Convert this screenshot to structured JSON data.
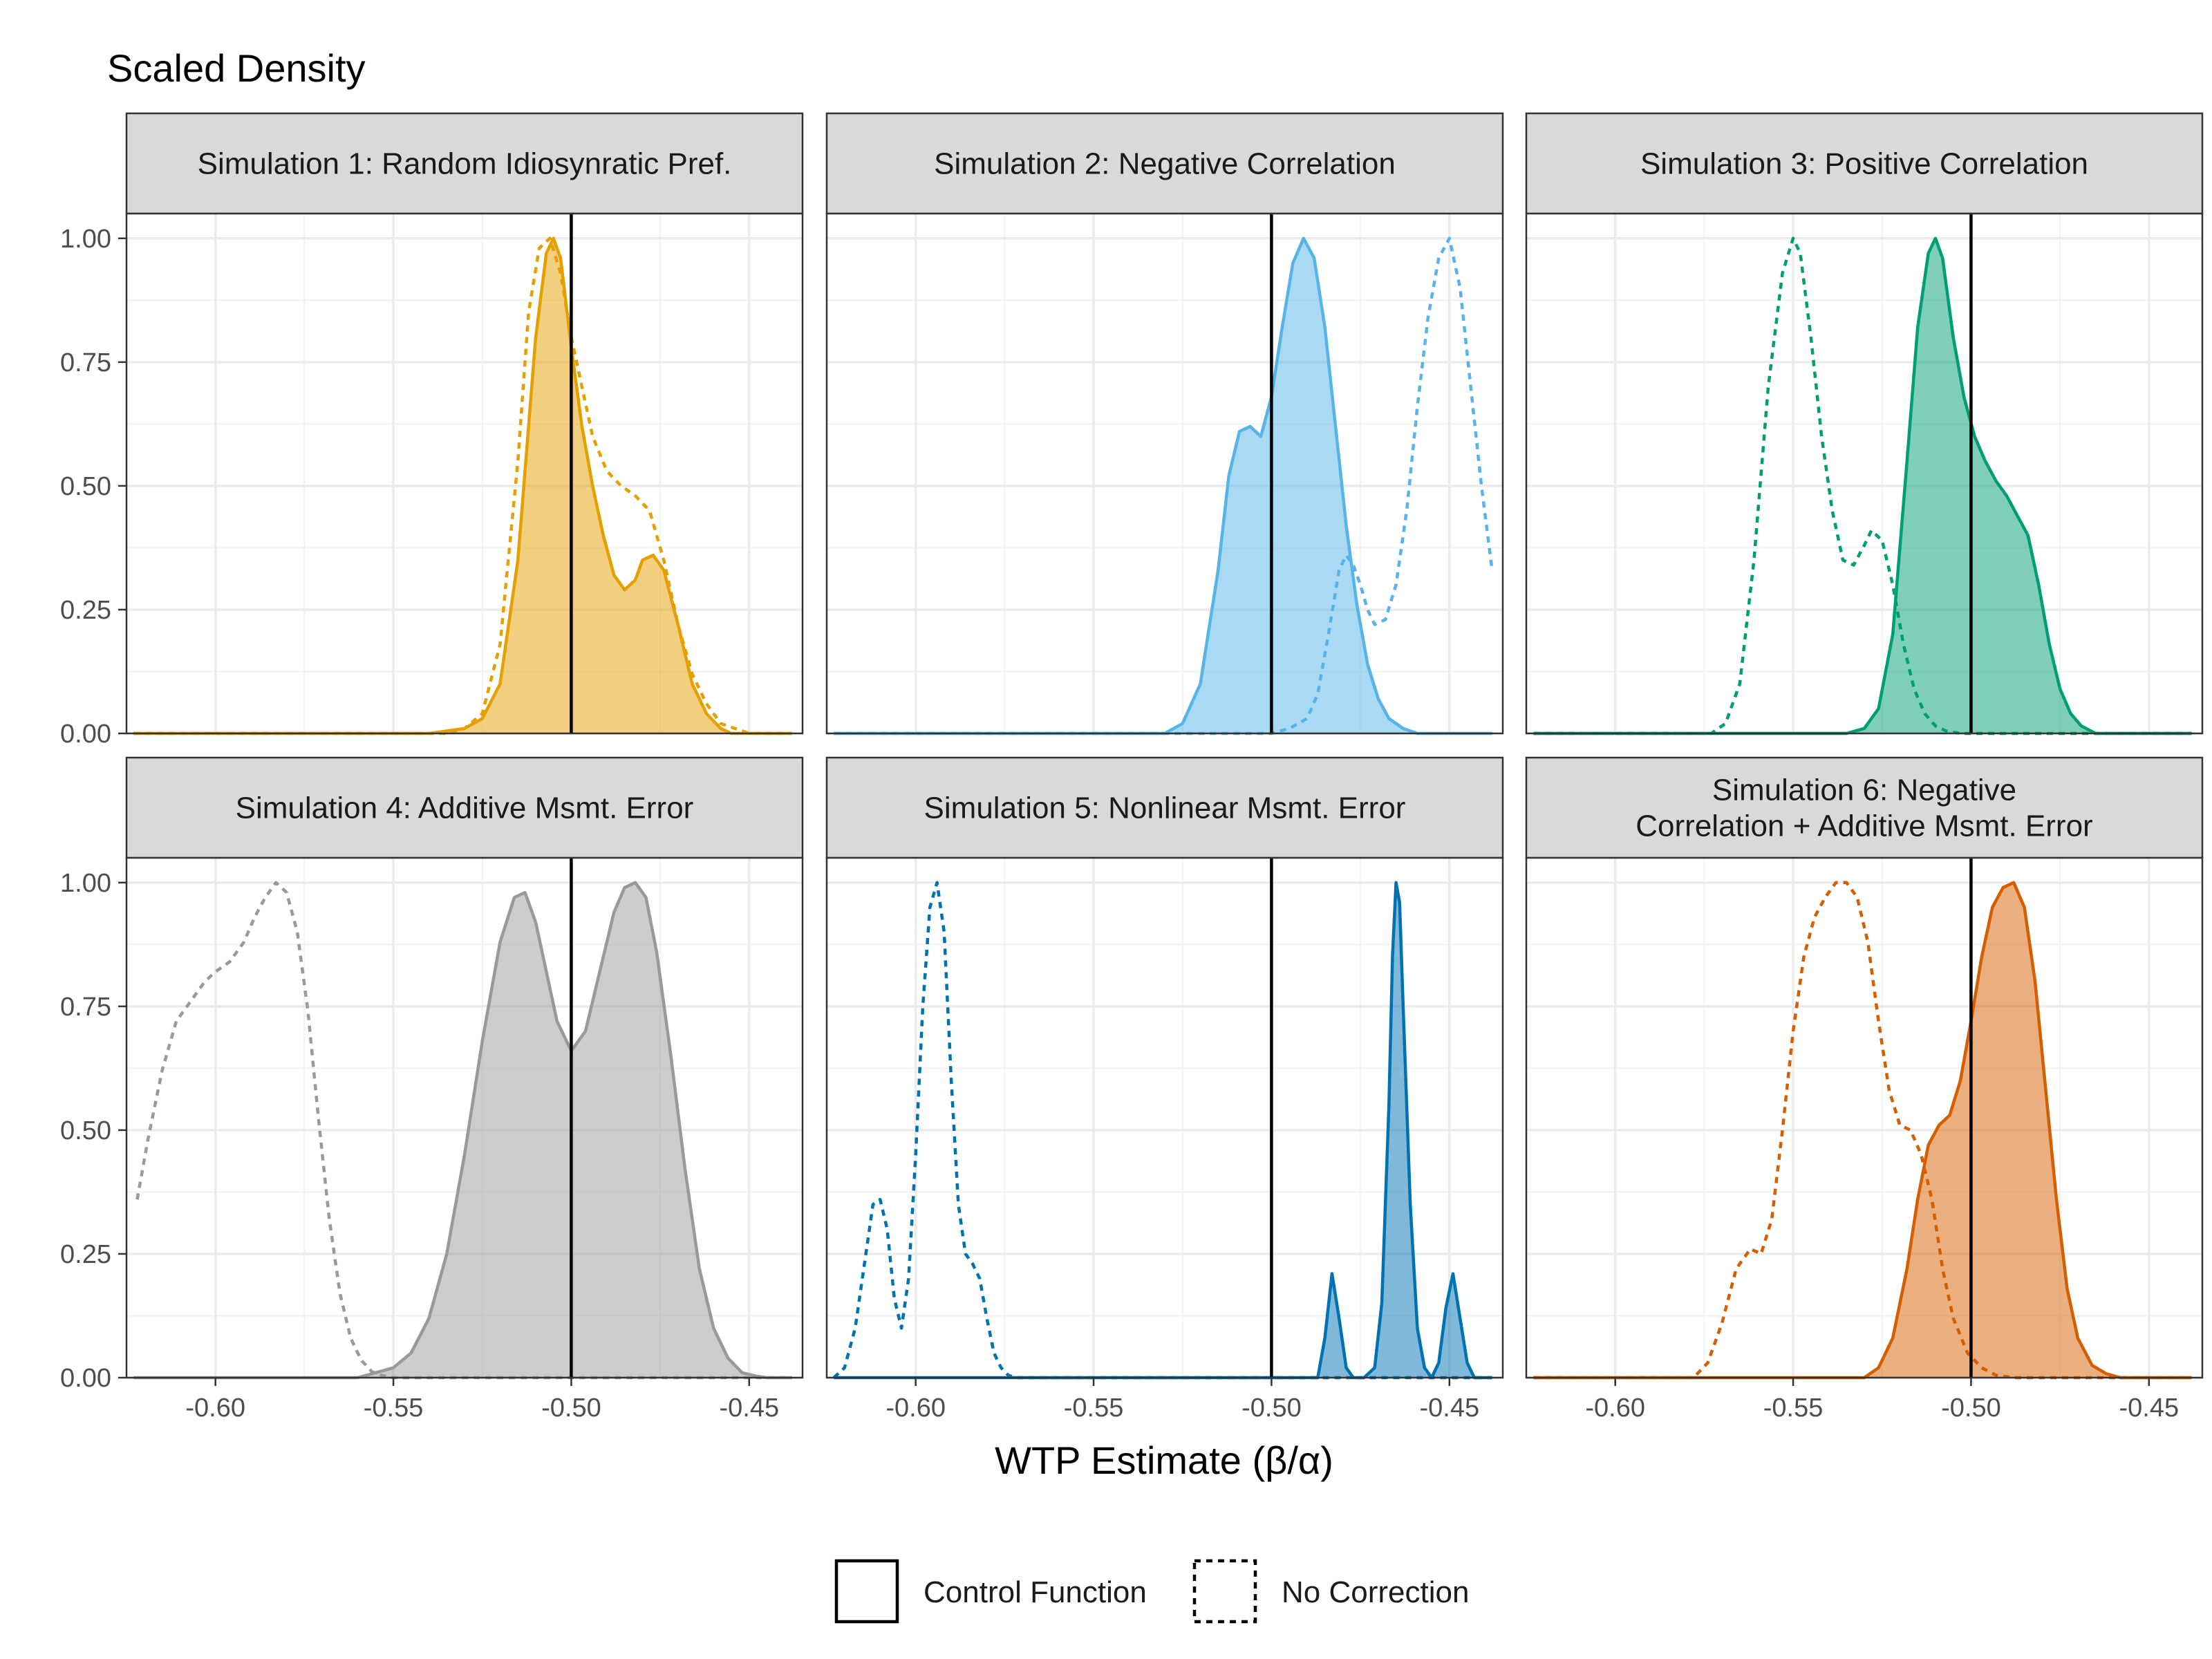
{
  "chart_data": {
    "type": "area",
    "ylabel": "Scaled Density",
    "xlabel": "WTP Estimate (β/α)",
    "xlim": [
      -0.625,
      -0.435
    ],
    "ylim": [
      0,
      1.05
    ],
    "x_ticks": [
      -0.6,
      -0.55,
      -0.5,
      -0.45
    ],
    "x_tick_labels": [
      "-0.60",
      "-0.55",
      "-0.50",
      "-0.45"
    ],
    "y_ticks": [
      0,
      0.25,
      0.5,
      0.75,
      1.0
    ],
    "y_tick_labels": [
      "0.00",
      "0.25",
      "0.50",
      "0.75",
      "1.00"
    ],
    "true_value_line": -0.5,
    "grid": true,
    "legend": {
      "position": "bottom",
      "entries": [
        {
          "label": "Control Function",
          "linetype": "solid"
        },
        {
          "label": "No Correction",
          "linetype": "dashed"
        }
      ]
    },
    "panels": [
      {
        "title": "Simulation 1: Random Idiosynratic Pref.",
        "title_lines": [
          "Simulation 1: Random Idiosynratic Pref."
        ],
        "color": "#E69F00",
        "control_function": {
          "x": [
            -0.623,
            -0.54,
            -0.53,
            -0.525,
            -0.52,
            -0.515,
            -0.51,
            -0.507,
            -0.505,
            -0.503,
            -0.5,
            -0.497,
            -0.494,
            -0.491,
            -0.488,
            -0.485,
            -0.482,
            -0.48,
            -0.477,
            -0.474,
            -0.47,
            -0.466,
            -0.462,
            -0.458,
            -0.455,
            -0.45,
            -0.438
          ],
          "y": [
            0,
            0,
            0.01,
            0.03,
            0.1,
            0.35,
            0.8,
            0.97,
            1.0,
            0.96,
            0.78,
            0.62,
            0.5,
            0.4,
            0.32,
            0.29,
            0.31,
            0.35,
            0.36,
            0.33,
            0.22,
            0.1,
            0.04,
            0.01,
            0,
            0,
            0
          ]
        },
        "no_correction": {
          "x": [
            -0.623,
            -0.535,
            -0.53,
            -0.525,
            -0.52,
            -0.515,
            -0.512,
            -0.509,
            -0.506,
            -0.503,
            -0.5,
            -0.497,
            -0.494,
            -0.49,
            -0.486,
            -0.482,
            -0.478,
            -0.474,
            -0.47,
            -0.466,
            -0.462,
            -0.458,
            -0.454,
            -0.45,
            -0.445,
            -0.438
          ],
          "y": [
            0,
            0,
            0.01,
            0.04,
            0.18,
            0.55,
            0.85,
            0.98,
            1.0,
            0.93,
            0.8,
            0.7,
            0.6,
            0.53,
            0.5,
            0.48,
            0.45,
            0.35,
            0.22,
            0.12,
            0.06,
            0.02,
            0.01,
            0,
            0,
            0
          ]
        }
      },
      {
        "title": "Simulation 2: Negative Correlation",
        "title_lines": [
          "Simulation 2: Negative Correlation"
        ],
        "color": "#56B4E9",
        "control_function": {
          "x": [
            -0.623,
            -0.53,
            -0.525,
            -0.52,
            -0.515,
            -0.512,
            -0.509,
            -0.506,
            -0.503,
            -0.5,
            -0.497,
            -0.494,
            -0.491,
            -0.488,
            -0.485,
            -0.482,
            -0.479,
            -0.476,
            -0.473,
            -0.47,
            -0.467,
            -0.463,
            -0.459,
            -0.455,
            -0.45,
            -0.438
          ],
          "y": [
            0,
            0,
            0.02,
            0.1,
            0.33,
            0.52,
            0.61,
            0.62,
            0.6,
            0.68,
            0.82,
            0.95,
            1.0,
            0.96,
            0.82,
            0.62,
            0.42,
            0.26,
            0.14,
            0.07,
            0.03,
            0.01,
            0,
            0,
            0,
            0
          ]
        },
        "no_correction": {
          "x": [
            -0.623,
            -0.5,
            -0.495,
            -0.49,
            -0.487,
            -0.484,
            -0.481,
            -0.479,
            -0.477,
            -0.475,
            -0.473,
            -0.471,
            -0.468,
            -0.465,
            -0.462,
            -0.459,
            -0.456,
            -0.453,
            -0.45,
            -0.447,
            -0.444,
            -0.441,
            -0.438
          ],
          "y": [
            0,
            0,
            0.01,
            0.03,
            0.08,
            0.2,
            0.33,
            0.36,
            0.34,
            0.3,
            0.25,
            0.22,
            0.23,
            0.3,
            0.45,
            0.66,
            0.84,
            0.96,
            1.0,
            0.9,
            0.7,
            0.5,
            0.33
          ]
        }
      },
      {
        "title": "Simulation 3: Positive Correlation",
        "title_lines": [
          "Simulation 3: Positive Correlation"
        ],
        "color": "#009E73",
        "control_function": {
          "x": [
            -0.623,
            -0.535,
            -0.53,
            -0.526,
            -0.522,
            -0.518,
            -0.515,
            -0.512,
            -0.51,
            -0.508,
            -0.505,
            -0.502,
            -0.499,
            -0.496,
            -0.493,
            -0.49,
            -0.487,
            -0.484,
            -0.481,
            -0.478,
            -0.475,
            -0.472,
            -0.469,
            -0.465,
            -0.46,
            -0.45,
            -0.438
          ],
          "y": [
            0,
            0,
            0.01,
            0.05,
            0.2,
            0.55,
            0.82,
            0.97,
            1.0,
            0.96,
            0.8,
            0.68,
            0.6,
            0.55,
            0.51,
            0.48,
            0.44,
            0.4,
            0.3,
            0.18,
            0.09,
            0.04,
            0.015,
            0,
            0,
            0,
            0
          ]
        },
        "no_correction": {
          "x": [
            -0.623,
            -0.573,
            -0.569,
            -0.565,
            -0.561,
            -0.557,
            -0.553,
            -0.55,
            -0.548,
            -0.545,
            -0.542,
            -0.539,
            -0.536,
            -0.533,
            -0.53,
            -0.528,
            -0.525,
            -0.522,
            -0.519,
            -0.516,
            -0.513,
            -0.51,
            -0.507,
            -0.503,
            -0.5,
            -0.438
          ],
          "y": [
            0,
            0,
            0.02,
            0.1,
            0.35,
            0.7,
            0.93,
            1.0,
            0.97,
            0.8,
            0.6,
            0.45,
            0.35,
            0.34,
            0.38,
            0.41,
            0.39,
            0.3,
            0.18,
            0.09,
            0.04,
            0.015,
            0.005,
            0,
            0,
            0
          ]
        }
      },
      {
        "title": "Simulation 4: Additive Msmt. Error",
        "title_lines": [
          "Simulation 4: Additive Msmt. Error"
        ],
        "color": "#999999",
        "control_function": {
          "x": [
            -0.623,
            -0.56,
            -0.55,
            -0.545,
            -0.54,
            -0.535,
            -0.53,
            -0.525,
            -0.52,
            -0.516,
            -0.513,
            -0.51,
            -0.507,
            -0.504,
            -0.5,
            -0.496,
            -0.492,
            -0.488,
            -0.485,
            -0.482,
            -0.479,
            -0.476,
            -0.472,
            -0.468,
            -0.464,
            -0.46,
            -0.456,
            -0.452,
            -0.448,
            -0.445,
            -0.438
          ],
          "y": [
            0,
            0,
            0.02,
            0.05,
            0.12,
            0.25,
            0.45,
            0.68,
            0.88,
            0.97,
            0.98,
            0.92,
            0.82,
            0.72,
            0.66,
            0.7,
            0.82,
            0.94,
            0.99,
            1.0,
            0.97,
            0.86,
            0.65,
            0.42,
            0.22,
            0.1,
            0.04,
            0.01,
            0.003,
            0,
            0
          ]
        },
        "no_correction": {
          "x": [
            -0.622,
            -0.619,
            -0.615,
            -0.611,
            -0.607,
            -0.603,
            -0.6,
            -0.596,
            -0.592,
            -0.589,
            -0.586,
            -0.583,
            -0.58,
            -0.577,
            -0.574,
            -0.571,
            -0.568,
            -0.565,
            -0.562,
            -0.559,
            -0.556,
            -0.553,
            -0.55,
            -0.545,
            -0.438
          ],
          "y": [
            0.36,
            0.48,
            0.62,
            0.72,
            0.76,
            0.8,
            0.82,
            0.84,
            0.88,
            0.93,
            0.97,
            1.0,
            0.98,
            0.9,
            0.74,
            0.52,
            0.32,
            0.17,
            0.08,
            0.035,
            0.012,
            0.004,
            0,
            0,
            0
          ]
        }
      },
      {
        "title": "Simulation 5: Nonlinear Msmt. Error",
        "title_lines": [
          "Simulation 5: Nonlinear Msmt. Error"
        ],
        "color": "#0072B2",
        "control_function": {
          "x": [
            -0.623,
            -0.487,
            -0.485,
            -0.483,
            -0.481,
            -0.479,
            -0.477,
            -0.474,
            -0.471,
            -0.469,
            -0.467,
            -0.466,
            -0.465,
            -0.464,
            -0.463,
            -0.461,
            -0.459,
            -0.457,
            -0.455,
            -0.453,
            -0.451,
            -0.449,
            -0.447,
            -0.445,
            -0.443,
            -0.438
          ],
          "y": [
            0,
            0,
            0.08,
            0.21,
            0.12,
            0.02,
            0,
            0,
            0.02,
            0.15,
            0.55,
            0.85,
            1.0,
            0.96,
            0.75,
            0.35,
            0.1,
            0.02,
            0,
            0.03,
            0.14,
            0.21,
            0.12,
            0.03,
            0,
            0
          ]
        },
        "no_correction": {
          "x": [
            -0.623,
            -0.62,
            -0.617,
            -0.614,
            -0.612,
            -0.61,
            -0.608,
            -0.606,
            -0.604,
            -0.602,
            -0.6,
            -0.598,
            -0.596,
            -0.594,
            -0.592,
            -0.59,
            -0.588,
            -0.586,
            -0.584,
            -0.582,
            -0.58,
            -0.578,
            -0.576,
            -0.574,
            -0.572,
            -0.568,
            -0.438
          ],
          "y": [
            0,
            0.02,
            0.1,
            0.25,
            0.35,
            0.36,
            0.3,
            0.16,
            0.1,
            0.2,
            0.45,
            0.75,
            0.95,
            1.0,
            0.9,
            0.6,
            0.35,
            0.25,
            0.23,
            0.2,
            0.12,
            0.05,
            0.02,
            0.005,
            0,
            0,
            0
          ]
        }
      },
      {
        "title": "Simulation 6: Negative Correlation + Additive Msmt. Error",
        "title_lines": [
          "Simulation 6: Negative",
          "Correlation + Additive Msmt. Error"
        ],
        "color": "#D55E00",
        "control_function": {
          "x": [
            -0.623,
            -0.53,
            -0.526,
            -0.522,
            -0.518,
            -0.515,
            -0.512,
            -0.509,
            -0.506,
            -0.503,
            -0.5,
            -0.497,
            -0.494,
            -0.491,
            -0.488,
            -0.485,
            -0.482,
            -0.479,
            -0.476,
            -0.473,
            -0.47,
            -0.466,
            -0.462,
            -0.458,
            -0.45,
            -0.438
          ],
          "y": [
            0,
            0,
            0.02,
            0.08,
            0.22,
            0.36,
            0.47,
            0.51,
            0.53,
            0.6,
            0.72,
            0.85,
            0.95,
            0.99,
            1.0,
            0.95,
            0.8,
            0.58,
            0.36,
            0.18,
            0.08,
            0.025,
            0.008,
            0,
            0,
            0
          ]
        },
        "no_correction": {
          "x": [
            -0.623,
            -0.578,
            -0.574,
            -0.57,
            -0.566,
            -0.562,
            -0.559,
            -0.556,
            -0.553,
            -0.55,
            -0.547,
            -0.544,
            -0.541,
            -0.538,
            -0.535,
            -0.532,
            -0.529,
            -0.526,
            -0.523,
            -0.52,
            -0.517,
            -0.514,
            -0.511,
            -0.508,
            -0.505,
            -0.501,
            -0.497,
            -0.493,
            -0.488,
            -0.438
          ],
          "y": [
            0,
            0,
            0.03,
            0.11,
            0.22,
            0.26,
            0.25,
            0.32,
            0.5,
            0.7,
            0.85,
            0.93,
            0.97,
            1.0,
            1.0,
            0.97,
            0.88,
            0.72,
            0.58,
            0.51,
            0.5,
            0.45,
            0.36,
            0.22,
            0.12,
            0.05,
            0.02,
            0.005,
            0,
            0
          ]
        }
      }
    ]
  }
}
